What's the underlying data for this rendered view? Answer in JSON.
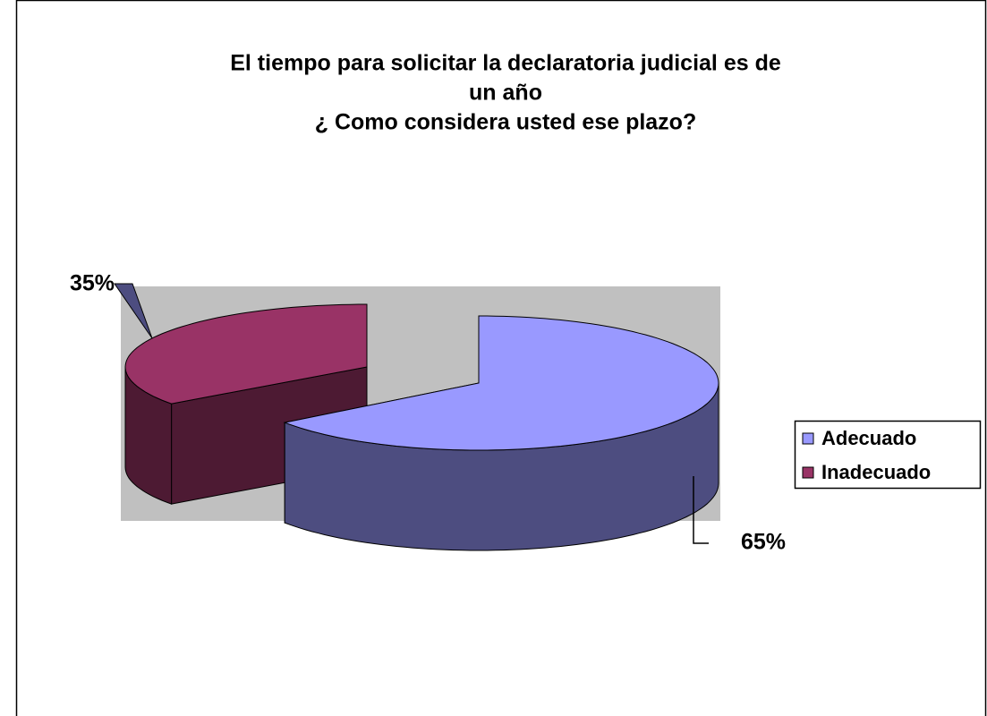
{
  "chart_data": {
    "type": "pie3d",
    "title": [
      "El tiempo para solicitar la declaratoria judicial es de",
      "un año",
      "¿ Como considera usted ese plazo?"
    ],
    "categories": [
      "Adecuado",
      "Inadecuado"
    ],
    "values": [
      65,
      35
    ],
    "value_labels": [
      "65%",
      "35%"
    ],
    "colors": [
      "#9999ff",
      "#993366"
    ],
    "legend": "right"
  }
}
